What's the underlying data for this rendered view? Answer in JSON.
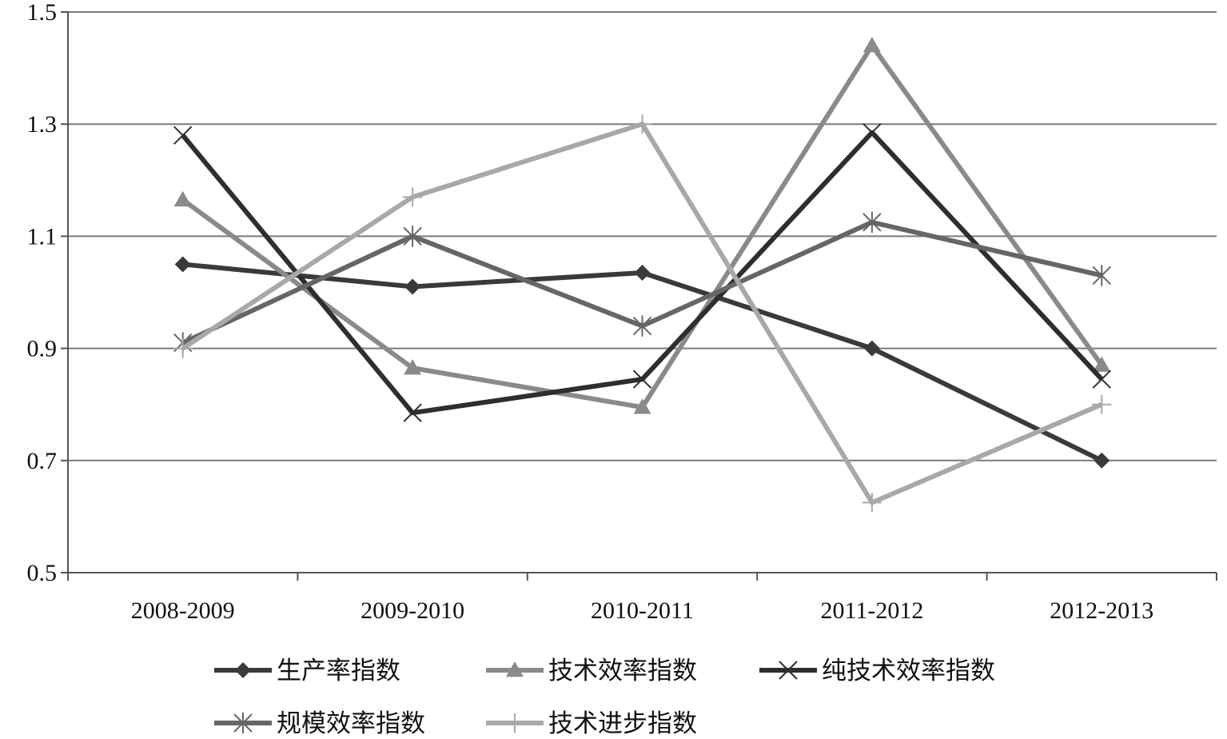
{
  "chart_data": {
    "type": "line",
    "title": "",
    "xlabel": "",
    "ylabel": "",
    "categories": [
      "2008-2009",
      "2009-2010",
      "2010-2011",
      "2011-2012",
      "2012-2013"
    ],
    "ylim": [
      0.5,
      1.5
    ],
    "yticks": [
      "0.5",
      "0.7",
      "0.9",
      "1.1",
      "1.3",
      "1.5"
    ],
    "grid": true,
    "legend_position": "bottom",
    "series": [
      {
        "name": "生产率指数",
        "values": [
          1.05,
          1.01,
          1.035,
          0.9,
          0.7
        ],
        "color": "#3a3a3a",
        "marker": "diamond"
      },
      {
        "name": "技术效率指数",
        "values": [
          1.165,
          0.865,
          0.795,
          1.44,
          0.87
        ],
        "color": "#8a8a8a",
        "marker": "triangle"
      },
      {
        "name": "纯技术效率指数",
        "values": [
          1.28,
          0.785,
          0.845,
          1.285,
          0.845
        ],
        "color": "#2e2e2e",
        "marker": "x"
      },
      {
        "name": "规模效率指数",
        "values": [
          0.91,
          1.1,
          0.94,
          1.125,
          1.03
        ],
        "color": "#666666",
        "marker": "asterisk"
      },
      {
        "name": "技术进步指数",
        "values": [
          0.9,
          1.17,
          1.3,
          0.625,
          0.8
        ],
        "color": "#a8a8a8",
        "marker": "plus"
      }
    ]
  }
}
